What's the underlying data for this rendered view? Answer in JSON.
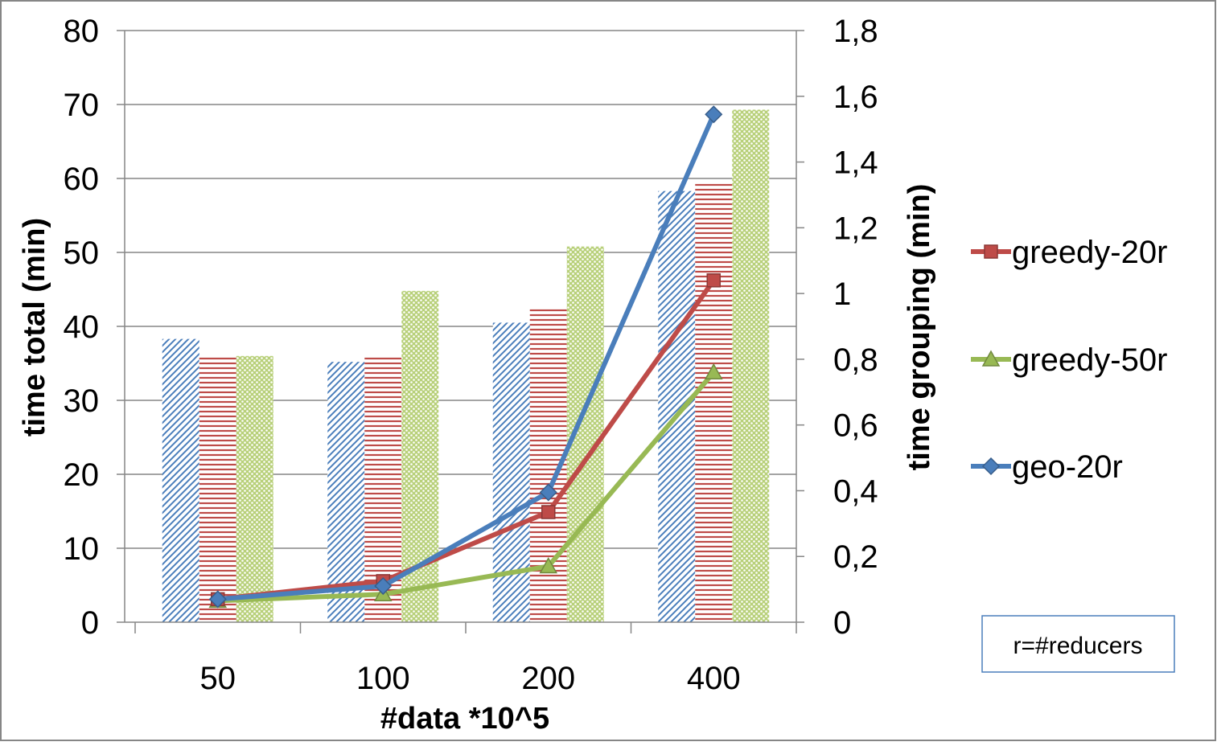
{
  "chart_data": {
    "type": "bar",
    "categories": [
      "50",
      "100",
      "200",
      "400"
    ],
    "xlabel": "#data *10^5",
    "ylabel": "time total (min)",
    "y2label": "time grouping (min)",
    "ylim": [
      0,
      80
    ],
    "y2lim": [
      0,
      1.8
    ],
    "yticks": [
      "0",
      "10",
      "20",
      "30",
      "40",
      "50",
      "60",
      "70",
      "80"
    ],
    "y2ticks": [
      "0",
      "0,2",
      "0,4",
      "0,6",
      "0,8",
      "1",
      "1,2",
      "1,4",
      "1,6",
      "1,8"
    ],
    "grid": true,
    "bar_series": [
      {
        "values": [
          38.3,
          35.2,
          40.5,
          58.3
        ],
        "color": "#4a7ebb",
        "pattern": "diagonal"
      },
      {
        "values": [
          36.0,
          36.0,
          42.5,
          59.5
        ],
        "color": "#be4b48",
        "pattern": "horizontal"
      },
      {
        "values": [
          36.0,
          44.8,
          50.8,
          69.3
        ],
        "color": "#98b954",
        "pattern": "dots"
      }
    ],
    "line_series": [
      {
        "name": "greedy-20r",
        "values": [
          0.07,
          0.125,
          0.335,
          1.04
        ],
        "color": "#be4b48",
        "marker": "square"
      },
      {
        "name": "greedy-50r",
        "values": [
          0.065,
          0.085,
          0.17,
          0.76
        ],
        "color": "#98b954",
        "marker": "triangle"
      },
      {
        "name": "geo-20r",
        "values": [
          0.07,
          0.11,
          0.395,
          1.545
        ],
        "color": "#4a7ebb",
        "marker": "diamond"
      }
    ],
    "legend_position": "right",
    "annotation": "r=#reducers"
  }
}
